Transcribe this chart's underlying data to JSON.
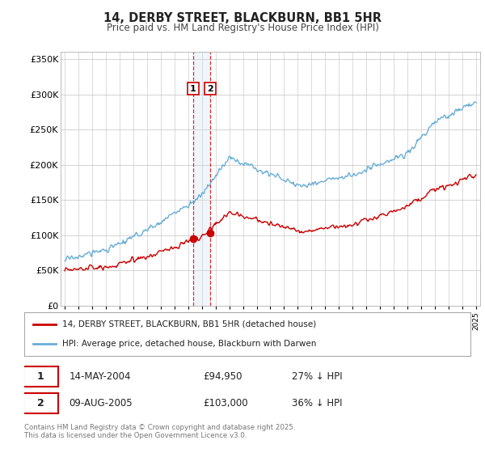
{
  "title": "14, DERBY STREET, BLACKBURN, BB1 5HR",
  "subtitle": "Price paid vs. HM Land Registry's House Price Index (HPI)",
  "ylim": [
    0,
    360000
  ],
  "yticks": [
    0,
    50000,
    100000,
    150000,
    200000,
    250000,
    300000,
    350000
  ],
  "ytick_labels": [
    "£0",
    "£50K",
    "£100K",
    "£150K",
    "£200K",
    "£250K",
    "£300K",
    "£350K"
  ],
  "hpi_color": "#6baed6",
  "price_color": "#cc0000",
  "span_color": "#c6dbef",
  "transaction1_date": 2004.37,
  "transaction1_price": 94950,
  "transaction2_date": 2005.61,
  "transaction2_price": 103000,
  "legend_line1": "14, DERBY STREET, BLACKBURN, BB1 5HR (detached house)",
  "legend_line2": "HPI: Average price, detached house, Blackburn with Darwen",
  "table_row1": [
    "1",
    "14-MAY-2004",
    "£94,950",
    "27% ↓ HPI"
  ],
  "table_row2": [
    "2",
    "09-AUG-2005",
    "£103,000",
    "36% ↓ HPI"
  ],
  "footer": "Contains HM Land Registry data © Crown copyright and database right 2025.\nThis data is licensed under the Open Government Licence v3.0.",
  "background_color": "#ffffff",
  "grid_color": "#cccccc"
}
